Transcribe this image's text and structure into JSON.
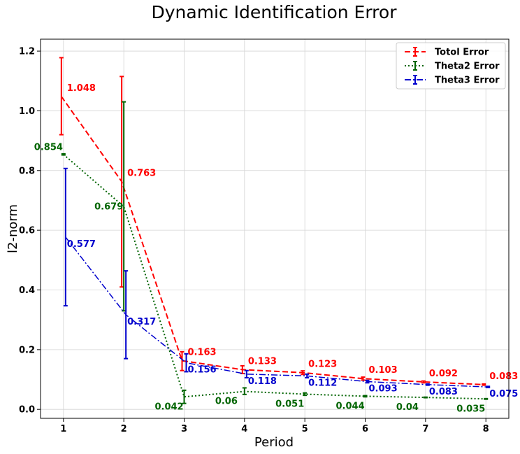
{
  "chart_data": {
    "type": "line",
    "title": "Dynamic Identification Error",
    "xlabel": "Period",
    "ylabel": "l2-norm",
    "x": [
      1,
      2,
      3,
      4,
      5,
      6,
      7,
      8
    ],
    "xlim": [
      0.62,
      8.38
    ],
    "ylim": [
      -0.03,
      1.24
    ],
    "xticks": [
      1,
      2,
      3,
      4,
      5,
      6,
      7,
      8
    ],
    "yticks": [
      0.0,
      0.2,
      0.4,
      0.6,
      0.8,
      1.0,
      1.2
    ],
    "ytick_labels": [
      "0.0",
      "0.2",
      "0.4",
      "0.6",
      "0.8",
      "1.0",
      "1.2"
    ],
    "grid": true,
    "legend_position": "top-right",
    "series": [
      {
        "name": "Totol Error",
        "color": "#ff0000",
        "line_style": "dashed",
        "values": [
          1.048,
          0.763,
          0.163,
          0.133,
          0.123,
          0.103,
          0.092,
          0.083
        ],
        "labels": [
          "1.048",
          "0.763",
          "0.163",
          "0.133",
          "0.123",
          "0.103",
          "0.092",
          "0.083"
        ],
        "err_low": [
          0.92,
          0.41,
          0.13,
          0.12,
          0.117,
          0.098,
          0.089,
          0.081
        ],
        "err_high": [
          1.178,
          1.115,
          0.193,
          0.146,
          0.129,
          0.108,
          0.095,
          0.085
        ]
      },
      {
        "name": "Theta2 Error",
        "color": "#006400",
        "line_style": "dotted",
        "values": [
          0.854,
          0.679,
          0.042,
          0.06,
          0.051,
          0.044,
          0.04,
          0.035
        ],
        "labels": [
          "0.854",
          "0.679",
          "0.042",
          "0.06",
          "0.051",
          "0.044",
          "0.04",
          "0.035"
        ],
        "err_low": [
          0.852,
          0.33,
          0.02,
          0.05,
          0.047,
          0.042,
          0.039,
          0.034
        ],
        "err_high": [
          0.856,
          1.03,
          0.064,
          0.072,
          0.055,
          0.046,
          0.041,
          0.036
        ]
      },
      {
        "name": "Theta3 Error",
        "color": "#0000cd",
        "line_style": "dashdot",
        "values": [
          0.577,
          0.317,
          0.156,
          0.118,
          0.112,
          0.093,
          0.083,
          0.075
        ],
        "labels": [
          "0.577",
          "0.317",
          "0.156",
          "0.118",
          "0.112",
          "0.093",
          "0.083",
          "0.075"
        ],
        "err_low": [
          0.347,
          0.17,
          0.126,
          0.106,
          0.106,
          0.089,
          0.081,
          0.073
        ],
        "err_high": [
          0.807,
          0.464,
          0.186,
          0.13,
          0.118,
          0.097,
          0.085,
          0.077
        ]
      }
    ]
  }
}
